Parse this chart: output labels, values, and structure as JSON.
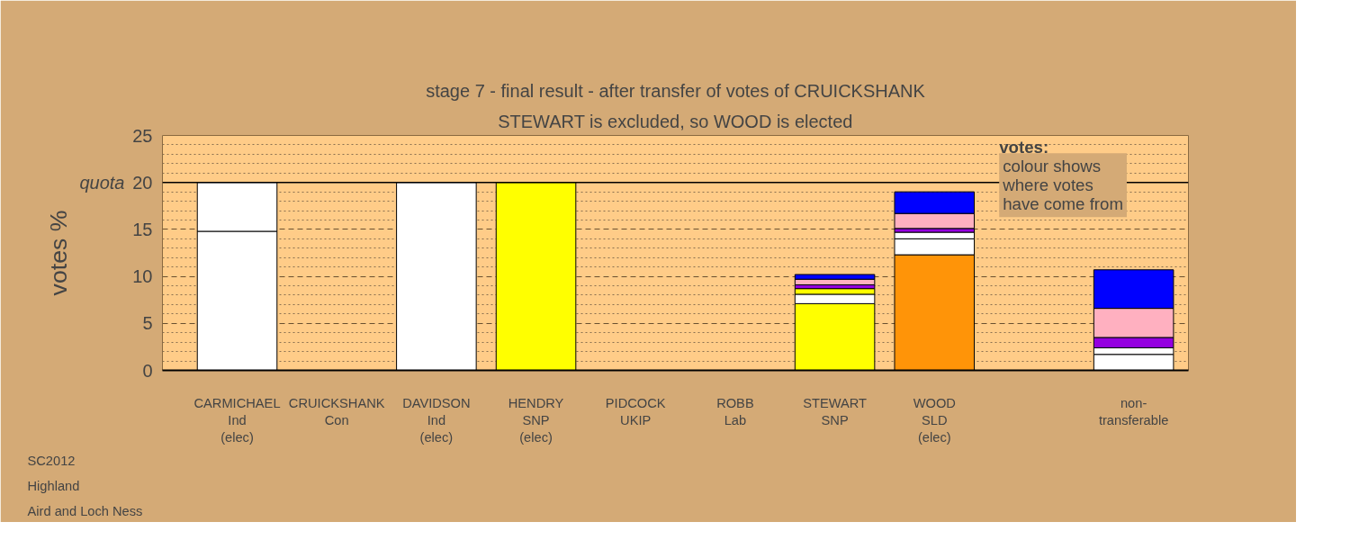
{
  "chart_data": {
    "type": "bar",
    "stacked": true,
    "title": "stage 7 - final result - after transfer of votes of CRUICKSHANK",
    "subtitle": "STEWART is excluded, so WOOD is elected",
    "ylabel": "votes %",
    "categories": [
      "CARMICHAEL\nInd\n(elec)",
      "CRUICKSHANK\nCon",
      "DAVIDSON\nInd\n(elec)",
      "HENDRY\nSNP\n(elec)",
      "PIDCOCK\nUKIP",
      "ROBB\nLab",
      "STEWART\nSNP",
      "WOOD\nSLD\n(elec)",
      null,
      "non-\ntransferable"
    ],
    "series": [
      {
        "values": [
          14.8,
          0,
          20,
          20,
          0,
          0,
          7.1,
          12.3,
          null,
          1.7
        ],
        "colors": [
          "#ffffff",
          "#000000",
          "#ffffff",
          "#ffff00",
          "#000000",
          "#000000",
          "#ffff00",
          "#ff9408",
          null,
          "#ffffff"
        ]
      },
      {
        "values": [
          5.2,
          null,
          null,
          null,
          null,
          null,
          1.0,
          1.7,
          null,
          0.7
        ],
        "colors": [
          "#ffffff",
          null,
          null,
          null,
          null,
          null,
          "#ffffff",
          "#ffffff",
          null,
          "#ffffff"
        ]
      },
      {
        "values": [
          null,
          null,
          null,
          null,
          null,
          null,
          null,
          0.7,
          null,
          1.1
        ],
        "colors": [
          null,
          null,
          null,
          null,
          null,
          null,
          null,
          "#ffffff",
          null,
          "#9400e0"
        ]
      },
      {
        "values": [
          null,
          null,
          null,
          null,
          null,
          null,
          0.6,
          0.4,
          null,
          3.1
        ],
        "colors": [
          null,
          null,
          null,
          null,
          null,
          null,
          "#ffff00",
          "#9400e0",
          null,
          "#ffb0c0"
        ]
      },
      {
        "values": [
          null,
          null,
          null,
          null,
          null,
          null,
          0.4,
          1.6,
          null,
          4.1
        ],
        "colors": [
          null,
          null,
          null,
          null,
          null,
          null,
          "#9400e0",
          "#ffb0c0",
          null,
          "#0000ff"
        ]
      },
      {
        "values": [
          null,
          null,
          null,
          null,
          null,
          null,
          0.6,
          2.3,
          null,
          null
        ],
        "colors": [
          null,
          null,
          null,
          null,
          null,
          null,
          "#ffb0c0",
          "#0000ff",
          null,
          null
        ]
      },
      {
        "values": [
          null,
          null,
          null,
          null,
          null,
          null,
          0.5,
          null,
          null,
          null
        ],
        "colors": [
          null,
          null,
          null,
          null,
          null,
          null,
          "#0000ff",
          null,
          null,
          null
        ]
      }
    ],
    "ylim": [
      0,
      25
    ],
    "yticks": [
      0,
      {
        "value": 1,
        "label": null
      },
      {
        "value": 2,
        "label": null
      },
      {
        "value": 3,
        "label": null
      },
      {
        "value": 4,
        "label": null
      },
      5,
      {
        "value": 6,
        "label": null
      },
      {
        "value": 7,
        "label": null
      },
      {
        "value": 8,
        "label": null
      },
      {
        "value": 9,
        "label": null
      },
      10,
      {
        "value": 11,
        "label": null
      },
      {
        "value": 12,
        "label": null
      },
      {
        "value": 13,
        "label": null
      },
      {
        "value": 14,
        "label": null
      },
      15,
      {
        "value": 16,
        "label": null
      },
      {
        "value": 17,
        "label": null
      },
      {
        "value": 18,
        "label": null
      },
      {
        "value": 19,
        "label": null
      },
      20,
      {
        "value": 21,
        "label": null
      },
      {
        "value": 22,
        "label": null
      },
      {
        "value": 23,
        "label": null
      },
      {
        "value": 24,
        "label": null
      },
      25
    ],
    "ref_lines": [
      {
        "axis": "y",
        "value": 20,
        "label": "quota",
        "color": "#000000"
      }
    ],
    "grid": "y",
    "annotations": [
      "SC2012",
      "Highland",
      "Aird and Loch Ness",
      "votes:",
      "colour shows\nwhere votes\nhave come from"
    ]
  }
}
